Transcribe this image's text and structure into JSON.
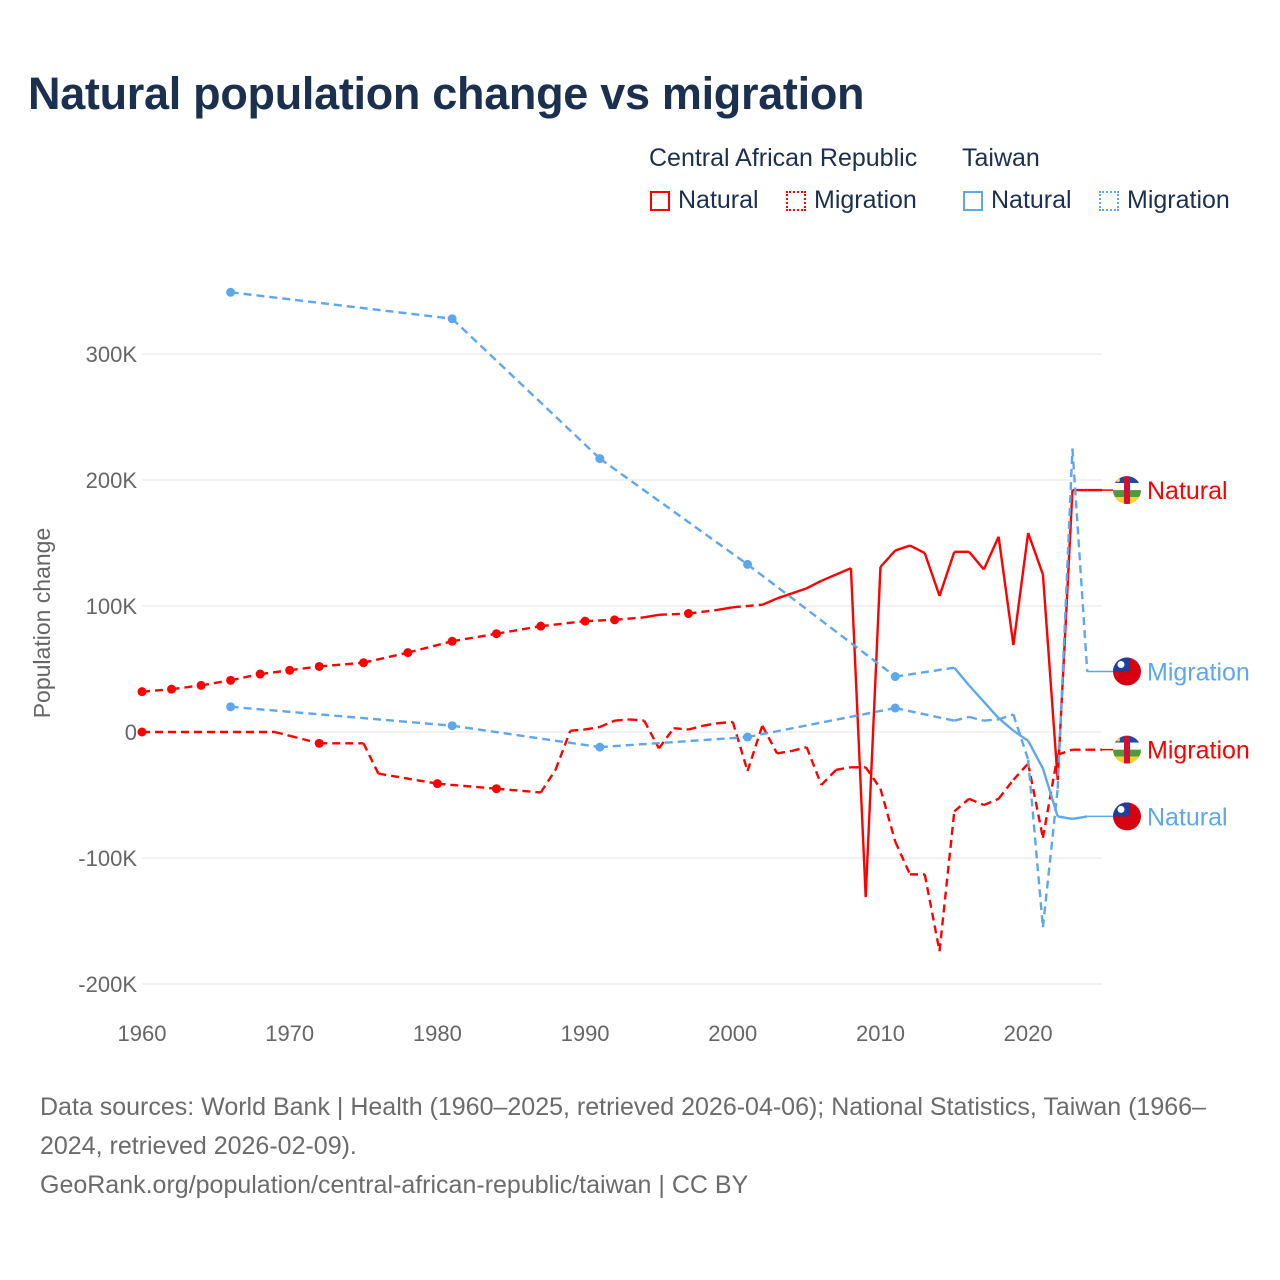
{
  "title": "Natural population change vs migration",
  "legend": {
    "groups": [
      {
        "name": "Central African Republic",
        "items": [
          "Natural",
          "Migration"
        ],
        "color": "#ff0000"
      },
      {
        "name": "Taiwan",
        "items": [
          "Natural",
          "Migration"
        ],
        "color": "#5ea7ec"
      }
    ]
  },
  "footer": {
    "sources": "Data sources: World Bank | Health (1960–2025, retrieved 2026-04-06); National Statistics, Taiwan (1966–2024, retrieved 2026-02-09).",
    "credit": "GeoRank.org/population/central-african-republic/taiwan | CC BY"
  },
  "chart_data": {
    "type": "line",
    "title": "Natural population change vs migration",
    "xlabel": "",
    "ylabel": "Population change",
    "xlim": [
      1960,
      2025
    ],
    "ylim": [
      -200000,
      350000
    ],
    "xticks": [
      1960,
      1970,
      1980,
      1990,
      2000,
      2010,
      2020
    ],
    "xtick_labels": [
      "1960",
      "1970",
      "1980",
      "1990",
      "2000",
      "2010",
      "2020"
    ],
    "yticks": [
      -200000,
      -100000,
      0,
      100000,
      200000,
      300000
    ],
    "ytick_labels": [
      "-200K",
      "-100K",
      "0",
      "100K",
      "200K",
      "300K"
    ],
    "grid": true,
    "legend_position": "top-right",
    "series": [
      {
        "name": "Central African Republic Natural",
        "end_label": "Natural",
        "color": "#ff0000",
        "style": "solid",
        "flag": "CAR",
        "points": [
          [
            1960,
            32000
          ],
          [
            1962,
            34000
          ],
          [
            1964,
            37000
          ],
          [
            1966,
            41000
          ],
          [
            1968,
            46000
          ],
          [
            1970,
            49000
          ],
          [
            1972,
            52000
          ],
          [
            1975,
            55000
          ],
          [
            1978,
            63000
          ],
          [
            1981,
            72000
          ],
          [
            1984,
            78000
          ],
          [
            1987,
            84000
          ],
          [
            1990,
            88000
          ],
          [
            1992,
            89000
          ],
          [
            1994,
            91000
          ],
          [
            1995,
            93000
          ],
          [
            1997,
            94000
          ],
          [
            1999,
            97000
          ],
          [
            2000,
            99000
          ],
          [
            2002,
            101000
          ],
          [
            2003,
            106000
          ],
          [
            2004,
            110000
          ],
          [
            2005,
            114000
          ],
          [
            2006,
            120000
          ],
          [
            2007,
            125000
          ],
          [
            2008,
            130000
          ],
          [
            2009,
            -131000
          ],
          [
            2010,
            131000
          ],
          [
            2011,
            144000
          ],
          [
            2012,
            148000
          ],
          [
            2013,
            142000
          ],
          [
            2014,
            108000
          ],
          [
            2015,
            143000
          ],
          [
            2016,
            143000
          ],
          [
            2017,
            129000
          ],
          [
            2018,
            155000
          ],
          [
            2019,
            69000
          ],
          [
            2020,
            158000
          ],
          [
            2021,
            125000
          ],
          [
            2022,
            -38000
          ],
          [
            2023,
            192000
          ],
          [
            2024,
            192000
          ],
          [
            2025,
            192000
          ]
        ]
      },
      {
        "name": "Central African Republic Migration",
        "end_label": "Migration",
        "color": "#ff0000",
        "style": "dashed",
        "flag": "CAR",
        "points": [
          [
            1960,
            0
          ],
          [
            1969,
            0
          ],
          [
            1970,
            -3000
          ],
          [
            1972,
            -9000
          ],
          [
            1975,
            -9000
          ],
          [
            1976,
            -33000
          ],
          [
            1980,
            -41000
          ],
          [
            1984,
            -45000
          ],
          [
            1987,
            -48000
          ],
          [
            1988,
            -30000
          ],
          [
            1989,
            1000
          ],
          [
            1990,
            2000
          ],
          [
            1991,
            4000
          ],
          [
            1992,
            9000
          ],
          [
            1993,
            10000
          ],
          [
            1994,
            9000
          ],
          [
            1995,
            -13000
          ],
          [
            1996,
            3000
          ],
          [
            1997,
            2000
          ],
          [
            1998,
            5000
          ],
          [
            1999,
            7000
          ],
          [
            2000,
            8000
          ],
          [
            2001,
            -31000
          ],
          [
            2002,
            5000
          ],
          [
            2003,
            -17000
          ],
          [
            2004,
            -15000
          ],
          [
            2005,
            -12000
          ],
          [
            2006,
            -42000
          ],
          [
            2007,
            -30000
          ],
          [
            2008,
            -28000
          ],
          [
            2009,
            -28000
          ],
          [
            2010,
            -45000
          ],
          [
            2011,
            -87000
          ],
          [
            2012,
            -113000
          ],
          [
            2013,
            -113000
          ],
          [
            2014,
            -174000
          ],
          [
            2015,
            -63000
          ],
          [
            2016,
            -53000
          ],
          [
            2017,
            -58000
          ],
          [
            2018,
            -53000
          ],
          [
            2019,
            -38000
          ],
          [
            2020,
            -25000
          ],
          [
            2021,
            -84000
          ],
          [
            2022,
            -18000
          ],
          [
            2023,
            -14000
          ],
          [
            2024,
            -14000
          ],
          [
            2025,
            -14000
          ]
        ]
      },
      {
        "name": "Taiwan Natural",
        "end_label": "Natural",
        "color": "#5ea7ec",
        "style": "solid",
        "flag": "TW",
        "points": [
          [
            1966,
            349000
          ],
          [
            1981,
            328000
          ],
          [
            1991,
            217000
          ],
          [
            2001,
            133000
          ],
          [
            2011,
            44000
          ],
          [
            2015,
            51000
          ],
          [
            2016,
            37000
          ],
          [
            2017,
            24000
          ],
          [
            2018,
            11000
          ],
          [
            2019,
            1000
          ],
          [
            2020,
            -7000
          ],
          [
            2021,
            -29000
          ],
          [
            2022,
            -67000
          ],
          [
            2023,
            -69000
          ],
          [
            2024,
            -67000
          ]
        ]
      },
      {
        "name": "Taiwan Migration",
        "end_label": "Migration",
        "color": "#5ea7ec",
        "style": "dashed",
        "flag": "TW",
        "points": [
          [
            1966,
            20000
          ],
          [
            1981,
            5000
          ],
          [
            1991,
            -12000
          ],
          [
            2001,
            -4000
          ],
          [
            2011,
            19000
          ],
          [
            2015,
            9000
          ],
          [
            2016,
            12000
          ],
          [
            2017,
            9000
          ],
          [
            2018,
            10000
          ],
          [
            2019,
            14000
          ],
          [
            2020,
            -22000
          ],
          [
            2021,
            -155000
          ],
          [
            2022,
            -45000
          ],
          [
            2023,
            225000
          ],
          [
            2024,
            48000
          ]
        ]
      }
    ]
  }
}
